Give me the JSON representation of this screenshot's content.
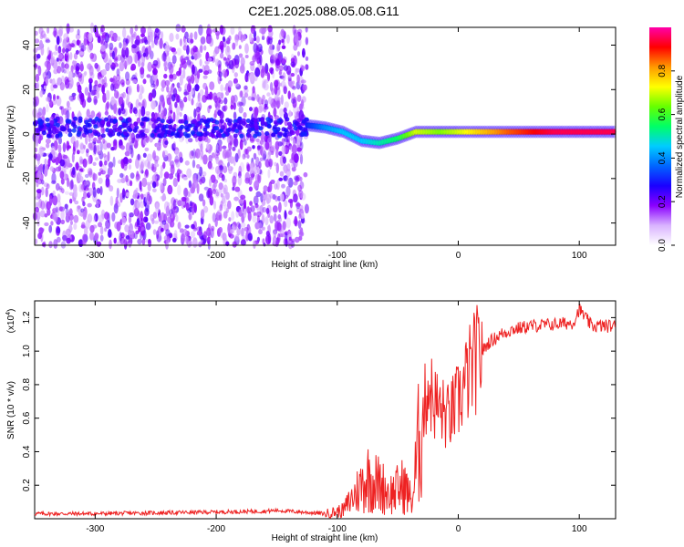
{
  "title": "C2E1.2025.088.05.08.G11",
  "chart_data": [
    {
      "type": "heatmap",
      "xlabel": "Height of straight line (km)",
      "ylabel": "Frequency (Hz)",
      "xlim": [
        -350,
        130
      ],
      "ylim": [
        -50,
        48
      ],
      "xticks": [
        -300,
        -200,
        -100,
        0,
        100
      ],
      "yticks": [
        -40,
        -20,
        0,
        20,
        40
      ],
      "colorbar": {
        "label": "Normalized spectral amplitude",
        "range": [
          0.0,
          1.0
        ],
        "ticks": [
          0.0,
          0.2,
          0.4,
          0.6,
          0.8
        ],
        "tick_labels": [
          "0.0",
          "0.2",
          "0.4",
          "0.6",
          "0.8"
        ],
        "colormap": [
          "#ffffff",
          "#d9b3ff",
          "#8a00ff",
          "#1a00ff",
          "#0066ff",
          "#00ccff",
          "#00ff66",
          "#66ff00",
          "#ffff00",
          "#ff9900",
          "#ff0000",
          "#ff00aa"
        ]
      },
      "features": [
        {
          "name": "noise region",
          "x_range": [
            -350,
            -125
          ],
          "y_range": [
            -50,
            48
          ],
          "amplitude_range": [
            0.0,
            0.15
          ]
        },
        {
          "name": "signal band",
          "points": [
            {
              "x": -125,
              "y": 4,
              "amplitude": 0.3
            },
            {
              "x": -110,
              "y": 3,
              "amplitude": 0.4
            },
            {
              "x": -95,
              "y": 1,
              "amplitude": 0.45
            },
            {
              "x": -80,
              "y": -3,
              "amplitude": 0.45
            },
            {
              "x": -65,
              "y": -4,
              "amplitude": 0.5
            },
            {
              "x": -50,
              "y": -2,
              "amplitude": 0.55
            },
            {
              "x": -35,
              "y": 1,
              "amplitude": 0.7
            },
            {
              "x": -15,
              "y": 1,
              "amplitude": 0.65
            },
            {
              "x": 0,
              "y": 1,
              "amplitude": 0.7
            },
            {
              "x": 40,
              "y": 1,
              "amplitude": 0.85
            },
            {
              "x": 80,
              "y": 1,
              "amplitude": 0.95
            },
            {
              "x": 130,
              "y": 1,
              "amplitude": 0.95
            }
          ]
        }
      ]
    },
    {
      "type": "line",
      "xlabel": "Height of straight line (km)",
      "ylabel": "SNR (10 * v/v)",
      "yscale_note": "(x10",
      "yscale_exp": "4",
      "xlim": [
        -350,
        130
      ],
      "ylim": [
        0,
        1.3
      ],
      "xticks": [
        -300,
        -200,
        -100,
        0,
        100
      ],
      "yticks": [
        0.2,
        0.4,
        0.6,
        0.8,
        1.0,
        1.2
      ],
      "ytick_labels": [
        "0.2",
        "0.4",
        "0.6",
        "0.8",
        "1.0",
        "1.2"
      ],
      "series": [
        {
          "color": "#ee2222",
          "x": [
            -350,
            -300,
            -250,
            -200,
            -160,
            -150,
            -130,
            -110,
            -95,
            -85,
            -75,
            -65,
            -55,
            -45,
            -38,
            -32,
            -25,
            -20,
            -15,
            -8,
            0,
            8,
            15,
            25,
            35,
            45,
            60,
            80,
            95,
            100,
            110,
            130
          ],
          "y": [
            0.03,
            0.03,
            0.035,
            0.04,
            0.045,
            0.05,
            0.04,
            0.03,
            0.05,
            0.15,
            0.25,
            0.2,
            0.15,
            0.2,
            0.1,
            0.5,
            0.8,
            0.7,
            0.65,
            0.6,
            0.7,
            0.85,
            0.95,
            1.05,
            1.1,
            1.13,
            1.15,
            1.16,
            1.17,
            1.25,
            1.15,
            1.15
          ]
        }
      ]
    }
  ]
}
